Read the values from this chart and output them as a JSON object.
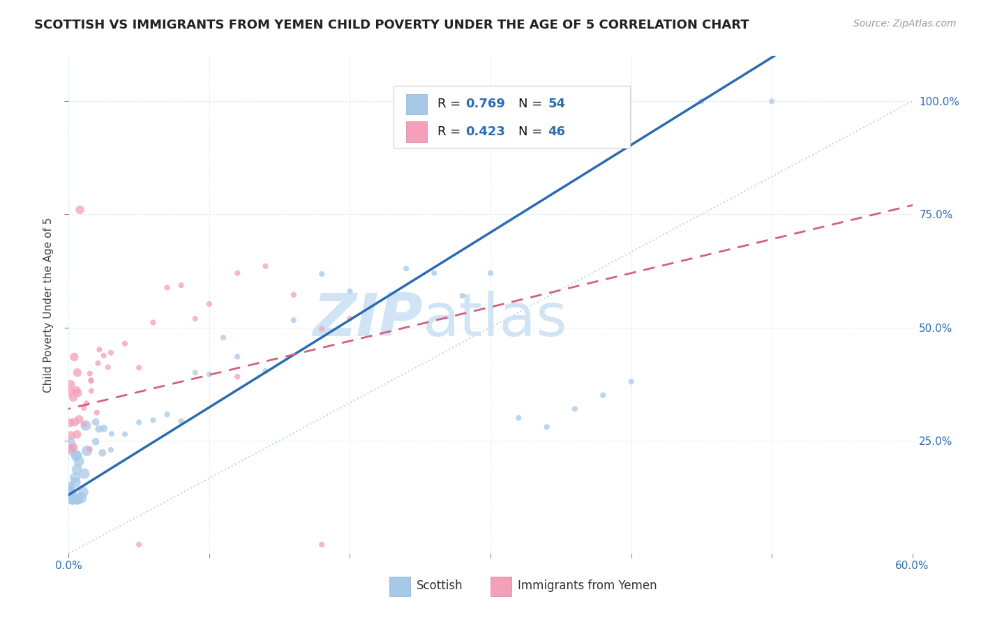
{
  "title": "SCOTTISH VS IMMIGRANTS FROM YEMEN CHILD POVERTY UNDER THE AGE OF 5 CORRELATION CHART",
  "source": "Source: ZipAtlas.com",
  "ylabel": "Child Poverty Under the Age of 5",
  "ytick_labels": [
    "100.0%",
    "75.0%",
    "50.0%",
    "25.0%"
  ],
  "ytick_values": [
    1.0,
    0.75,
    0.5,
    0.25
  ],
  "xlim": [
    0.0,
    0.6
  ],
  "ylim": [
    0.0,
    1.1
  ],
  "legend_scottish": "Scottish",
  "legend_yemen": "Immigrants from Yemen",
  "r_scottish": 0.769,
  "n_scottish": 54,
  "r_yemen": 0.423,
  "n_yemen": 46,
  "scottish_color": "#a8c8e8",
  "yemen_color": "#f4a0b8",
  "scottish_line_color": "#2b6cb0",
  "yemen_line_color": "#d45f80",
  "diag_line_color": "#c0d8f0",
  "watermark_zip": "ZIP",
  "watermark_atlas": "atlas",
  "watermark_color": "#d0e4f5",
  "title_fontsize": 13,
  "source_fontsize": 10,
  "tick_fontsize": 11,
  "ylabel_fontsize": 11
}
